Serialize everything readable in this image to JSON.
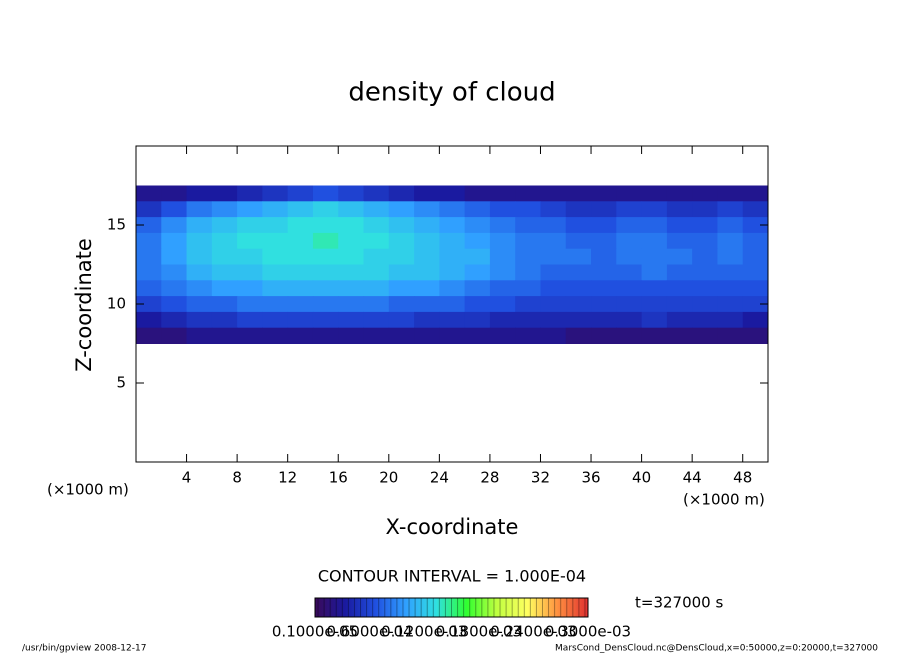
{
  "chart_data": {
    "type": "heatmap",
    "title": "density of cloud",
    "xlabel": "X-coordinate",
    "ylabel": "Z-coordinate",
    "xunit": "(×1000 m)",
    "yunit": "(×1000 m)",
    "xlim": [
      0,
      50
    ],
    "ylim": [
      0,
      20
    ],
    "xticks": [
      4,
      8,
      12,
      16,
      20,
      24,
      28,
      32,
      36,
      40,
      44,
      48
    ],
    "yticks": [
      5,
      10,
      15
    ],
    "x": [
      1,
      3,
      5,
      7,
      9,
      11,
      13,
      15,
      17,
      19,
      21,
      23,
      25,
      27,
      29,
      31,
      33,
      35,
      37,
      39,
      41,
      43,
      45,
      47,
      49
    ],
    "z": [
      17,
      16,
      15,
      14,
      13,
      12,
      11,
      10,
      9,
      8
    ],
    "values": [
      [
        3e-05,
        3e-05,
        4e-05,
        4e-05,
        5e-05,
        6e-05,
        7e-05,
        8e-05,
        7e-05,
        6e-05,
        5e-05,
        4e-05,
        4e-05,
        3e-05,
        3e-05,
        3e-05,
        3e-05,
        3e-05,
        3e-05,
        3e-05,
        3e-05,
        3e-05,
        3e-05,
        3e-05,
        3e-05
      ],
      [
        6e-05,
        8e-05,
        0.0001,
        0.00011,
        0.00012,
        0.00013,
        0.00014,
        0.00015,
        0.00014,
        0.00013,
        0.00012,
        0.00011,
        0.0001,
        9e-05,
        8e-05,
        8e-05,
        7e-05,
        6e-05,
        6e-05,
        7e-05,
        7e-05,
        6e-05,
        6e-05,
        7e-05,
        6e-05
      ],
      [
        9e-05,
        0.00011,
        0.00013,
        0.00014,
        0.00015,
        0.00015,
        0.00016,
        0.00016,
        0.00016,
        0.00015,
        0.00014,
        0.00013,
        0.00012,
        0.00011,
        0.0001,
        9e-05,
        9e-05,
        8e-05,
        8e-05,
        9e-05,
        9e-05,
        8e-05,
        8e-05,
        9e-05,
        8e-05
      ],
      [
        0.0001,
        0.00012,
        0.00014,
        0.00015,
        0.00016,
        0.00016,
        0.00016,
        0.00017,
        0.00016,
        0.00016,
        0.00015,
        0.00014,
        0.00013,
        0.00012,
        0.00011,
        0.0001,
        0.0001,
        9e-05,
        9e-05,
        0.0001,
        0.0001,
        9e-05,
        9e-05,
        0.0001,
        9e-05
      ],
      [
        0.0001,
        0.00012,
        0.00014,
        0.00015,
        0.00015,
        0.00016,
        0.00016,
        0.00016,
        0.00016,
        0.00015,
        0.00015,
        0.00014,
        0.00013,
        0.00013,
        0.00011,
        0.0001,
        0.0001,
        0.0001,
        9e-05,
        0.0001,
        0.0001,
        0.0001,
        9e-05,
        0.0001,
        9e-05
      ],
      [
        0.0001,
        0.00011,
        0.00013,
        0.00014,
        0.00014,
        0.00015,
        0.00015,
        0.00015,
        0.00015,
        0.00015,
        0.00014,
        0.00014,
        0.00013,
        0.00012,
        0.00011,
        0.0001,
        9e-05,
        9e-05,
        9e-05,
        9e-05,
        0.0001,
        9e-05,
        9e-05,
        9e-05,
        9e-05
      ],
      [
        9e-05,
        0.0001,
        0.00011,
        0.00012,
        0.00012,
        0.00013,
        0.00013,
        0.00013,
        0.00013,
        0.00013,
        0.00012,
        0.00012,
        0.00011,
        0.0001,
        9e-05,
        9e-05,
        8e-05,
        8e-05,
        8e-05,
        8e-05,
        8e-05,
        8e-05,
        8e-05,
        8e-05,
        8e-05
      ],
      [
        7e-05,
        8e-05,
        9e-05,
        9e-05,
        0.0001,
        0.0001,
        0.0001,
        0.0001,
        0.0001,
        0.0001,
        9e-05,
        9e-05,
        9e-05,
        8e-05,
        8e-05,
        7e-05,
        7e-05,
        7e-05,
        7e-05,
        7e-05,
        7e-05,
        7e-05,
        7e-05,
        7e-05,
        7e-05
      ],
      [
        4e-05,
        5e-05,
        6e-05,
        6e-05,
        7e-05,
        7e-05,
        7e-05,
        7e-05,
        7e-05,
        7e-05,
        7e-05,
        6e-05,
        6e-05,
        6e-05,
        5e-05,
        5e-05,
        5e-05,
        5e-05,
        5e-05,
        5e-05,
        6e-05,
        5e-05,
        5e-05,
        5e-05,
        4e-05
      ],
      [
        2e-05,
        2e-05,
        3e-05,
        3e-05,
        3e-05,
        3e-05,
        3e-05,
        3e-05,
        3e-05,
        3e-05,
        3e-05,
        3e-05,
        3e-05,
        3e-05,
        3e-05,
        3e-05,
        3e-05,
        2e-05,
        2e-05,
        2e-05,
        2e-05,
        2e-05,
        2e-05,
        2e-05,
        2e-05
      ]
    ],
    "colorbar": {
      "lim": [
        0,
        0.00036
      ],
      "colors": [
        "#3a0a5a",
        "#1a1aa0",
        "#2050e0",
        "#30a0ff",
        "#30e0e0",
        "#30ff30",
        "#c0ff40",
        "#ffff60",
        "#ff9040",
        "#e03030"
      ],
      "labels": [
        "0.1000e-05",
        "0.6000e-04",
        "0.1200e-03",
        "0.1800e-03",
        "0.2400e-03",
        "0.3000e-03"
      ]
    },
    "contour_note": "CONTOUR INTERVAL = 1.000E-04",
    "time_note": "t=327000 s",
    "footer_left": "/usr/bin/gpview   2008-12-17",
    "footer_right": "MarsCond_DensCloud.nc@DensCloud,x=0:50000,z=0:20000,t=327000"
  }
}
